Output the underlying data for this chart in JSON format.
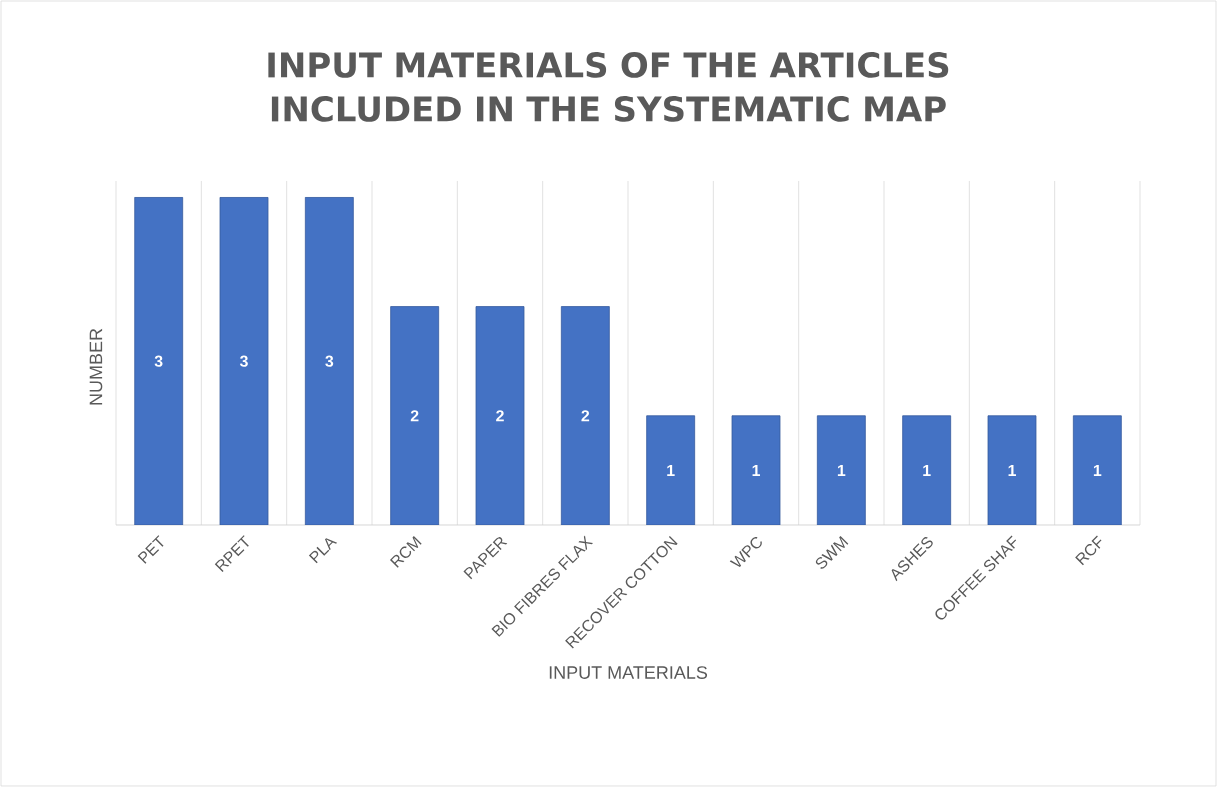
{
  "chart_data": {
    "type": "bar",
    "title": "INPUT MATERIALS OF THE ARTICLES INCLUDED IN THE SYSTEMATIC MAP",
    "xlabel": "INPUT MATERIALS",
    "ylabel": "NUMBER",
    "categories": [
      "PET",
      "RPET",
      "PLA",
      "RCM",
      "PAPER",
      "BIO FIBRES FLAX",
      "RECOVER COTTON",
      "WPC",
      "SWM",
      "ASHES",
      "COFFEE SHAF",
      "RCF"
    ],
    "values": [
      3,
      3,
      3,
      2,
      2,
      2,
      1,
      1,
      1,
      1,
      1,
      1
    ],
    "color": "#4472c4",
    "data_labels": true,
    "grid": "x"
  }
}
